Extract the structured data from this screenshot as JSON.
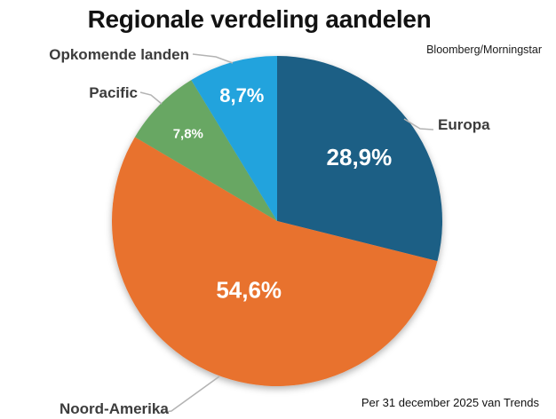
{
  "title": "Regionale verdeling aandelen",
  "attribution": "Bloomberg/Morningstar",
  "footnote": "Per 31 december 2025 van Trends",
  "chart_data": {
    "type": "pie",
    "title": "Regionale verdeling aandelen",
    "categories": [
      "Europa",
      "Noord-Amerika",
      "Pacific",
      "Opkomende landen"
    ],
    "values": [
      28.9,
      54.6,
      7.8,
      8.7
    ],
    "value_labels": [
      "28,9%",
      "54,6%",
      "7,8%",
      "8,7%"
    ],
    "colors": [
      "#1b5f85",
      "#e8722e",
      "#67a763",
      "#23a3dd"
    ],
    "start_angle_deg": 0,
    "direction": "clockwise",
    "legend_position": "outside-callouts",
    "label_radius_frac": [
      0.63,
      0.45,
      0.757,
      0.79
    ],
    "label_font_px": [
      26,
      26,
      15,
      22
    ],
    "source": "Bloomberg/Morningstar",
    "note": "Per 31 december 2025 van Trends"
  }
}
